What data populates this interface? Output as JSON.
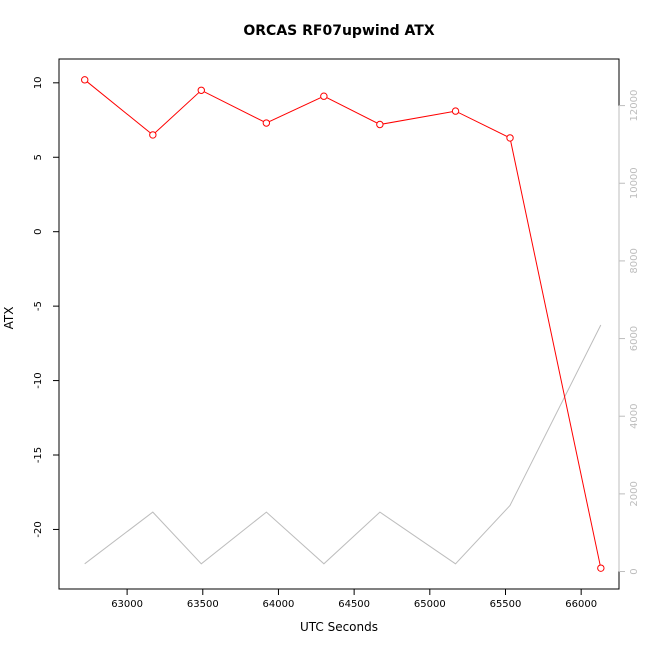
{
  "chart_data": {
    "type": "line",
    "title": "ORCAS RF07upwind ATX",
    "xlabel": "UTC Seconds",
    "ylabel": "ATX",
    "xlim": [
      62550,
      66250
    ],
    "ylim": [
      -24.0,
      11.6
    ],
    "y2lim": [
      -450,
      13200
    ],
    "x_ticks": [
      63000,
      63500,
      64000,
      64500,
      65000,
      65500,
      66000
    ],
    "y_ticks": [
      10,
      5,
      0,
      -5,
      -10,
      -15,
      -20
    ],
    "y2_ticks": [
      0,
      2000,
      4000,
      6000,
      8000,
      10000,
      12000
    ],
    "grid": false,
    "legend": "none",
    "series": [
      {
        "axis": "left",
        "color": "#ff0000",
        "marker": "open-circle",
        "x": [
          62720,
          63170,
          63490,
          63920,
          64300,
          64670,
          65170,
          65530,
          66130
        ],
        "y": [
          10.2,
          6.5,
          9.5,
          7.3,
          9.1,
          7.2,
          8.1,
          6.3,
          -22.6
        ]
      },
      {
        "axis": "right",
        "color": "#bdbdbd",
        "marker": "none",
        "x": [
          62720,
          63170,
          63490,
          63920,
          64300,
          64670,
          65170,
          65530,
          66130
        ],
        "y": [
          200,
          1530,
          200,
          1530,
          200,
          1530,
          200,
          1700,
          6350
        ]
      }
    ]
  }
}
